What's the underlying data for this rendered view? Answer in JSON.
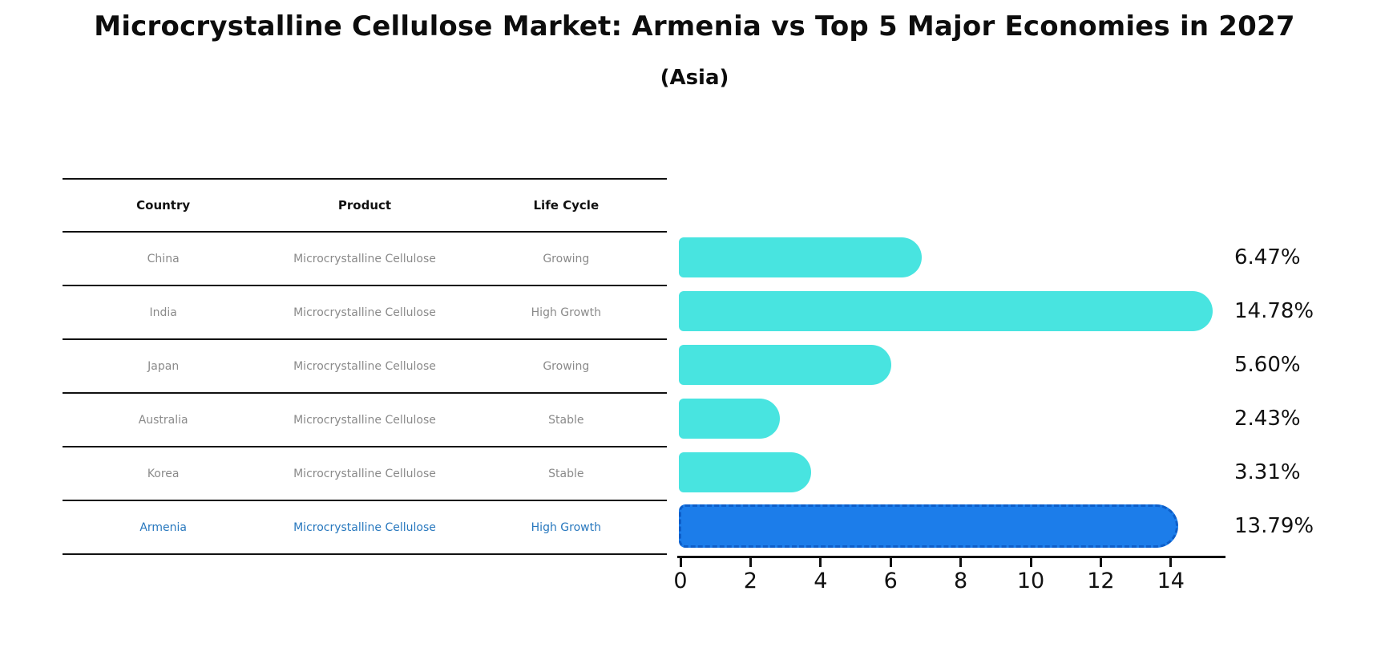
{
  "title": "Microcrystalline Cellulose Market: Armenia vs Top 5 Major Economies in 2027",
  "subtitle": "(Asia)",
  "table": {
    "headers": [
      "Country",
      "Product",
      "Life Cycle"
    ],
    "rows": [
      {
        "country": "China",
        "product": "Microcrystalline Cellulose",
        "life_cycle": "Growing",
        "highlight": false
      },
      {
        "country": "India",
        "product": "Microcrystalline Cellulose",
        "life_cycle": "High Growth",
        "highlight": false
      },
      {
        "country": "Japan",
        "product": "Microcrystalline Cellulose",
        "life_cycle": "Growing",
        "highlight": false
      },
      {
        "country": "Australia",
        "product": "Microcrystalline Cellulose",
        "life_cycle": "Stable",
        "highlight": false
      },
      {
        "country": "Korea",
        "product": "Microcrystalline Cellulose",
        "life_cycle": "Stable",
        "highlight": false
      },
      {
        "country": "Armenia",
        "product": "Microcrystalline Cellulose",
        "life_cycle": "High Growth",
        "highlight": true
      }
    ]
  },
  "chart_data": {
    "type": "bar",
    "orientation": "horizontal",
    "title": "Microcrystalline Cellulose Market: Armenia vs Top 5 Major Economies in 2027",
    "subtitle": "(Asia)",
    "categories": [
      "China",
      "India",
      "Japan",
      "Australia",
      "Korea",
      "Armenia"
    ],
    "values": [
      6.47,
      14.78,
      5.6,
      2.43,
      3.31,
      13.79
    ],
    "value_labels": [
      "6.47%",
      "14.78%",
      "5.60%",
      "2.43%",
      "3.31%",
      "13.79%"
    ],
    "x_ticks": [
      0,
      2,
      4,
      6,
      8,
      10,
      12,
      14
    ],
    "xlim": [
      0,
      15.5
    ],
    "grid": false,
    "legend": "none",
    "highlight_category": "Armenia",
    "colors": {
      "bar": "#48e4e0",
      "highlight_bar": "#1c7dea",
      "highlight_border": "#0d5ec9",
      "axis": "#111111",
      "table_row_text": "#8a8a8a",
      "table_highlight_text": "#2878be",
      "header_text": "#111111",
      "value_label_text": "#111111"
    }
  }
}
